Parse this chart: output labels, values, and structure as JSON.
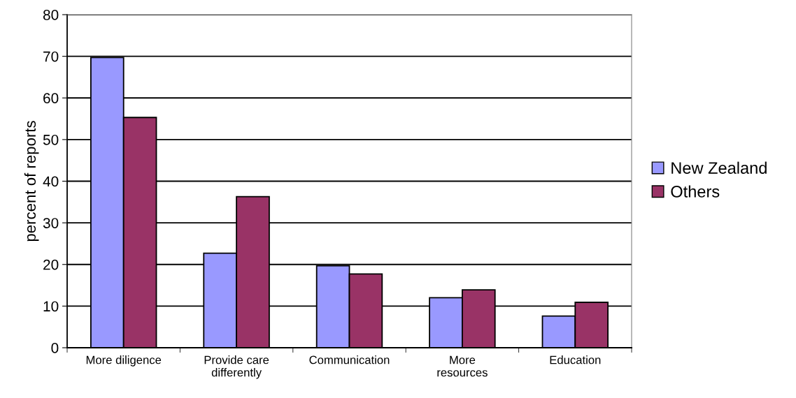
{
  "chart_data": {
    "type": "bar",
    "ylabel": "percent of reports",
    "categories": [
      "More diligence",
      "Provide care\ndifferently",
      "Communication",
      "More\nresources",
      "Education"
    ],
    "series": [
      {
        "name": "New Zealand",
        "color": "#9999ff",
        "values": [
          69.7,
          22.7,
          19.7,
          12.0,
          7.6
        ]
      },
      {
        "name": "Others",
        "color": "#993366",
        "values": [
          55.3,
          36.3,
          17.7,
          13.9,
          10.9
        ]
      }
    ],
    "ylim": [
      0,
      80
    ],
    "yticks": [
      0,
      10,
      20,
      30,
      40,
      50,
      60,
      70,
      80
    ],
    "grid": "y",
    "legend": "right"
  }
}
